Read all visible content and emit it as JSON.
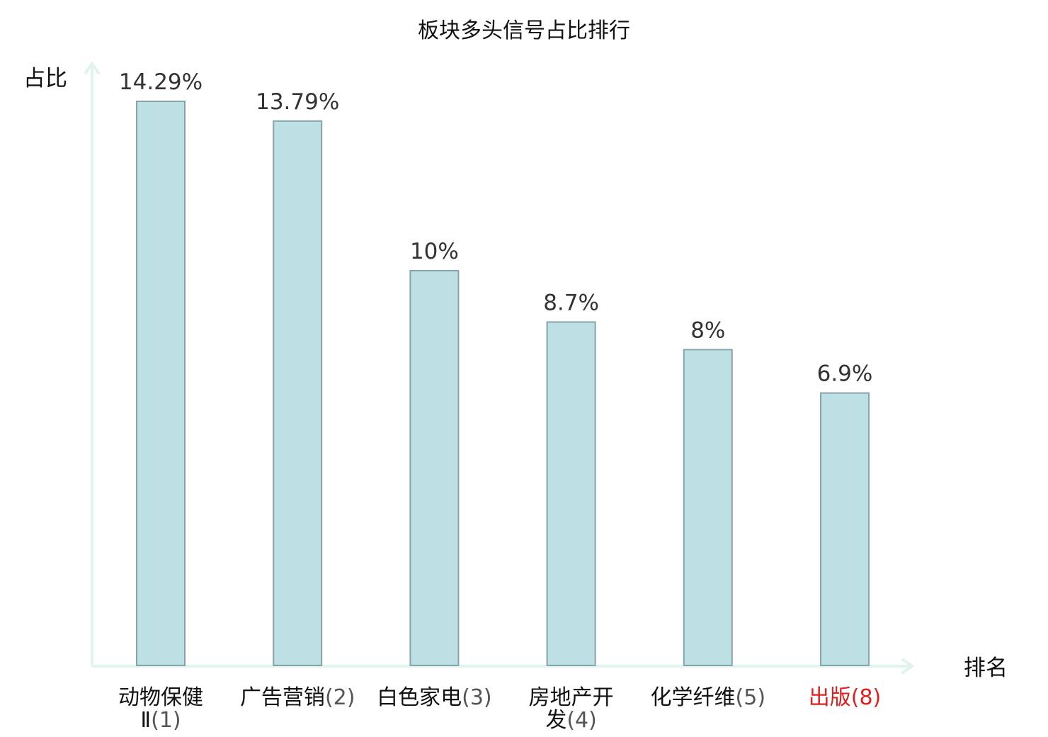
{
  "chart_data": {
    "type": "bar",
    "title": "板块多头信号占比排行",
    "ylabel": "占比",
    "xlabel": "排名",
    "ylim": [
      0,
      15.6
    ],
    "grid": false,
    "legend": "none",
    "categories": [
      {
        "name": "动物保健Ⅱ",
        "rank": "(1)",
        "highlight": false
      },
      {
        "name": "广告营销",
        "rank": "(2)",
        "highlight": false
      },
      {
        "name": "白色家电",
        "rank": "(3)",
        "highlight": false
      },
      {
        "name": "房地产开发",
        "rank": "(4)",
        "highlight": false
      },
      {
        "name": "化学纤维",
        "rank": "(5)",
        "highlight": false
      },
      {
        "name": "出版",
        "rank": "(8)",
        "highlight": true
      }
    ],
    "values": [
      14.29,
      13.79,
      10,
      8.7,
      8,
      6.9
    ],
    "value_labels": [
      "14.29%",
      "13.79%",
      "10%",
      "8.7%",
      "8%",
      "6.9%"
    ],
    "colors": {
      "bar_fill": "#bce0e3",
      "bar_stroke": "#87a5a8",
      "axis": "#e0f3ef",
      "highlight_text": "#e0201e",
      "normal_text": "#111111",
      "rank_text": "#555555"
    }
  }
}
